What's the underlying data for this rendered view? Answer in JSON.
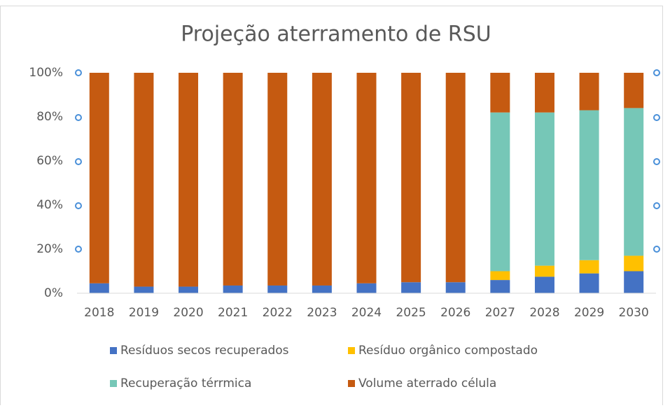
{
  "chart_data": {
    "type": "stacked_bar",
    "title": "Projeção aterramento de RSU",
    "categories": [
      "2018",
      "2019",
      "2020",
      "2021",
      "2022",
      "2023",
      "2024",
      "2025",
      "2026",
      "2027",
      "2028",
      "2029",
      "2030"
    ],
    "series": [
      {
        "name": "Resíduos secos recuperados",
        "color": "#4472c4",
        "values": [
          4.5,
          3,
          3,
          3.5,
          3.5,
          3.5,
          4.5,
          5,
          5,
          6,
          7.5,
          9,
          10
        ]
      },
      {
        "name": "Resíduo orgânico compostado",
        "color": "#ffc000",
        "values": [
          0,
          0,
          0,
          0,
          0,
          0,
          0,
          0,
          0,
          4,
          5,
          6,
          7
        ]
      },
      {
        "name": "Recuperação térrmica",
        "color": "#76c7b7",
        "values": [
          0,
          0,
          0,
          0,
          0,
          0,
          0,
          0,
          0,
          72,
          69.5,
          68,
          67
        ]
      },
      {
        "name": "Volume aterrado célula",
        "color": "#c55a11",
        "values": [
          95.5,
          97,
          97,
          96.5,
          96.5,
          96.5,
          95.5,
          95,
          95,
          18,
          18,
          17,
          16
        ]
      }
    ],
    "ylim": [
      0,
      100
    ],
    "yticks": [
      {
        "value": 0,
        "label": "0%"
      },
      {
        "value": 20,
        "label": "20%"
      },
      {
        "value": 40,
        "label": "40%"
      },
      {
        "value": 60,
        "label": "60%"
      },
      {
        "value": 80,
        "label": "80%"
      },
      {
        "value": 100,
        "label": "100%"
      }
    ],
    "grid": false,
    "legend": "bottom"
  }
}
